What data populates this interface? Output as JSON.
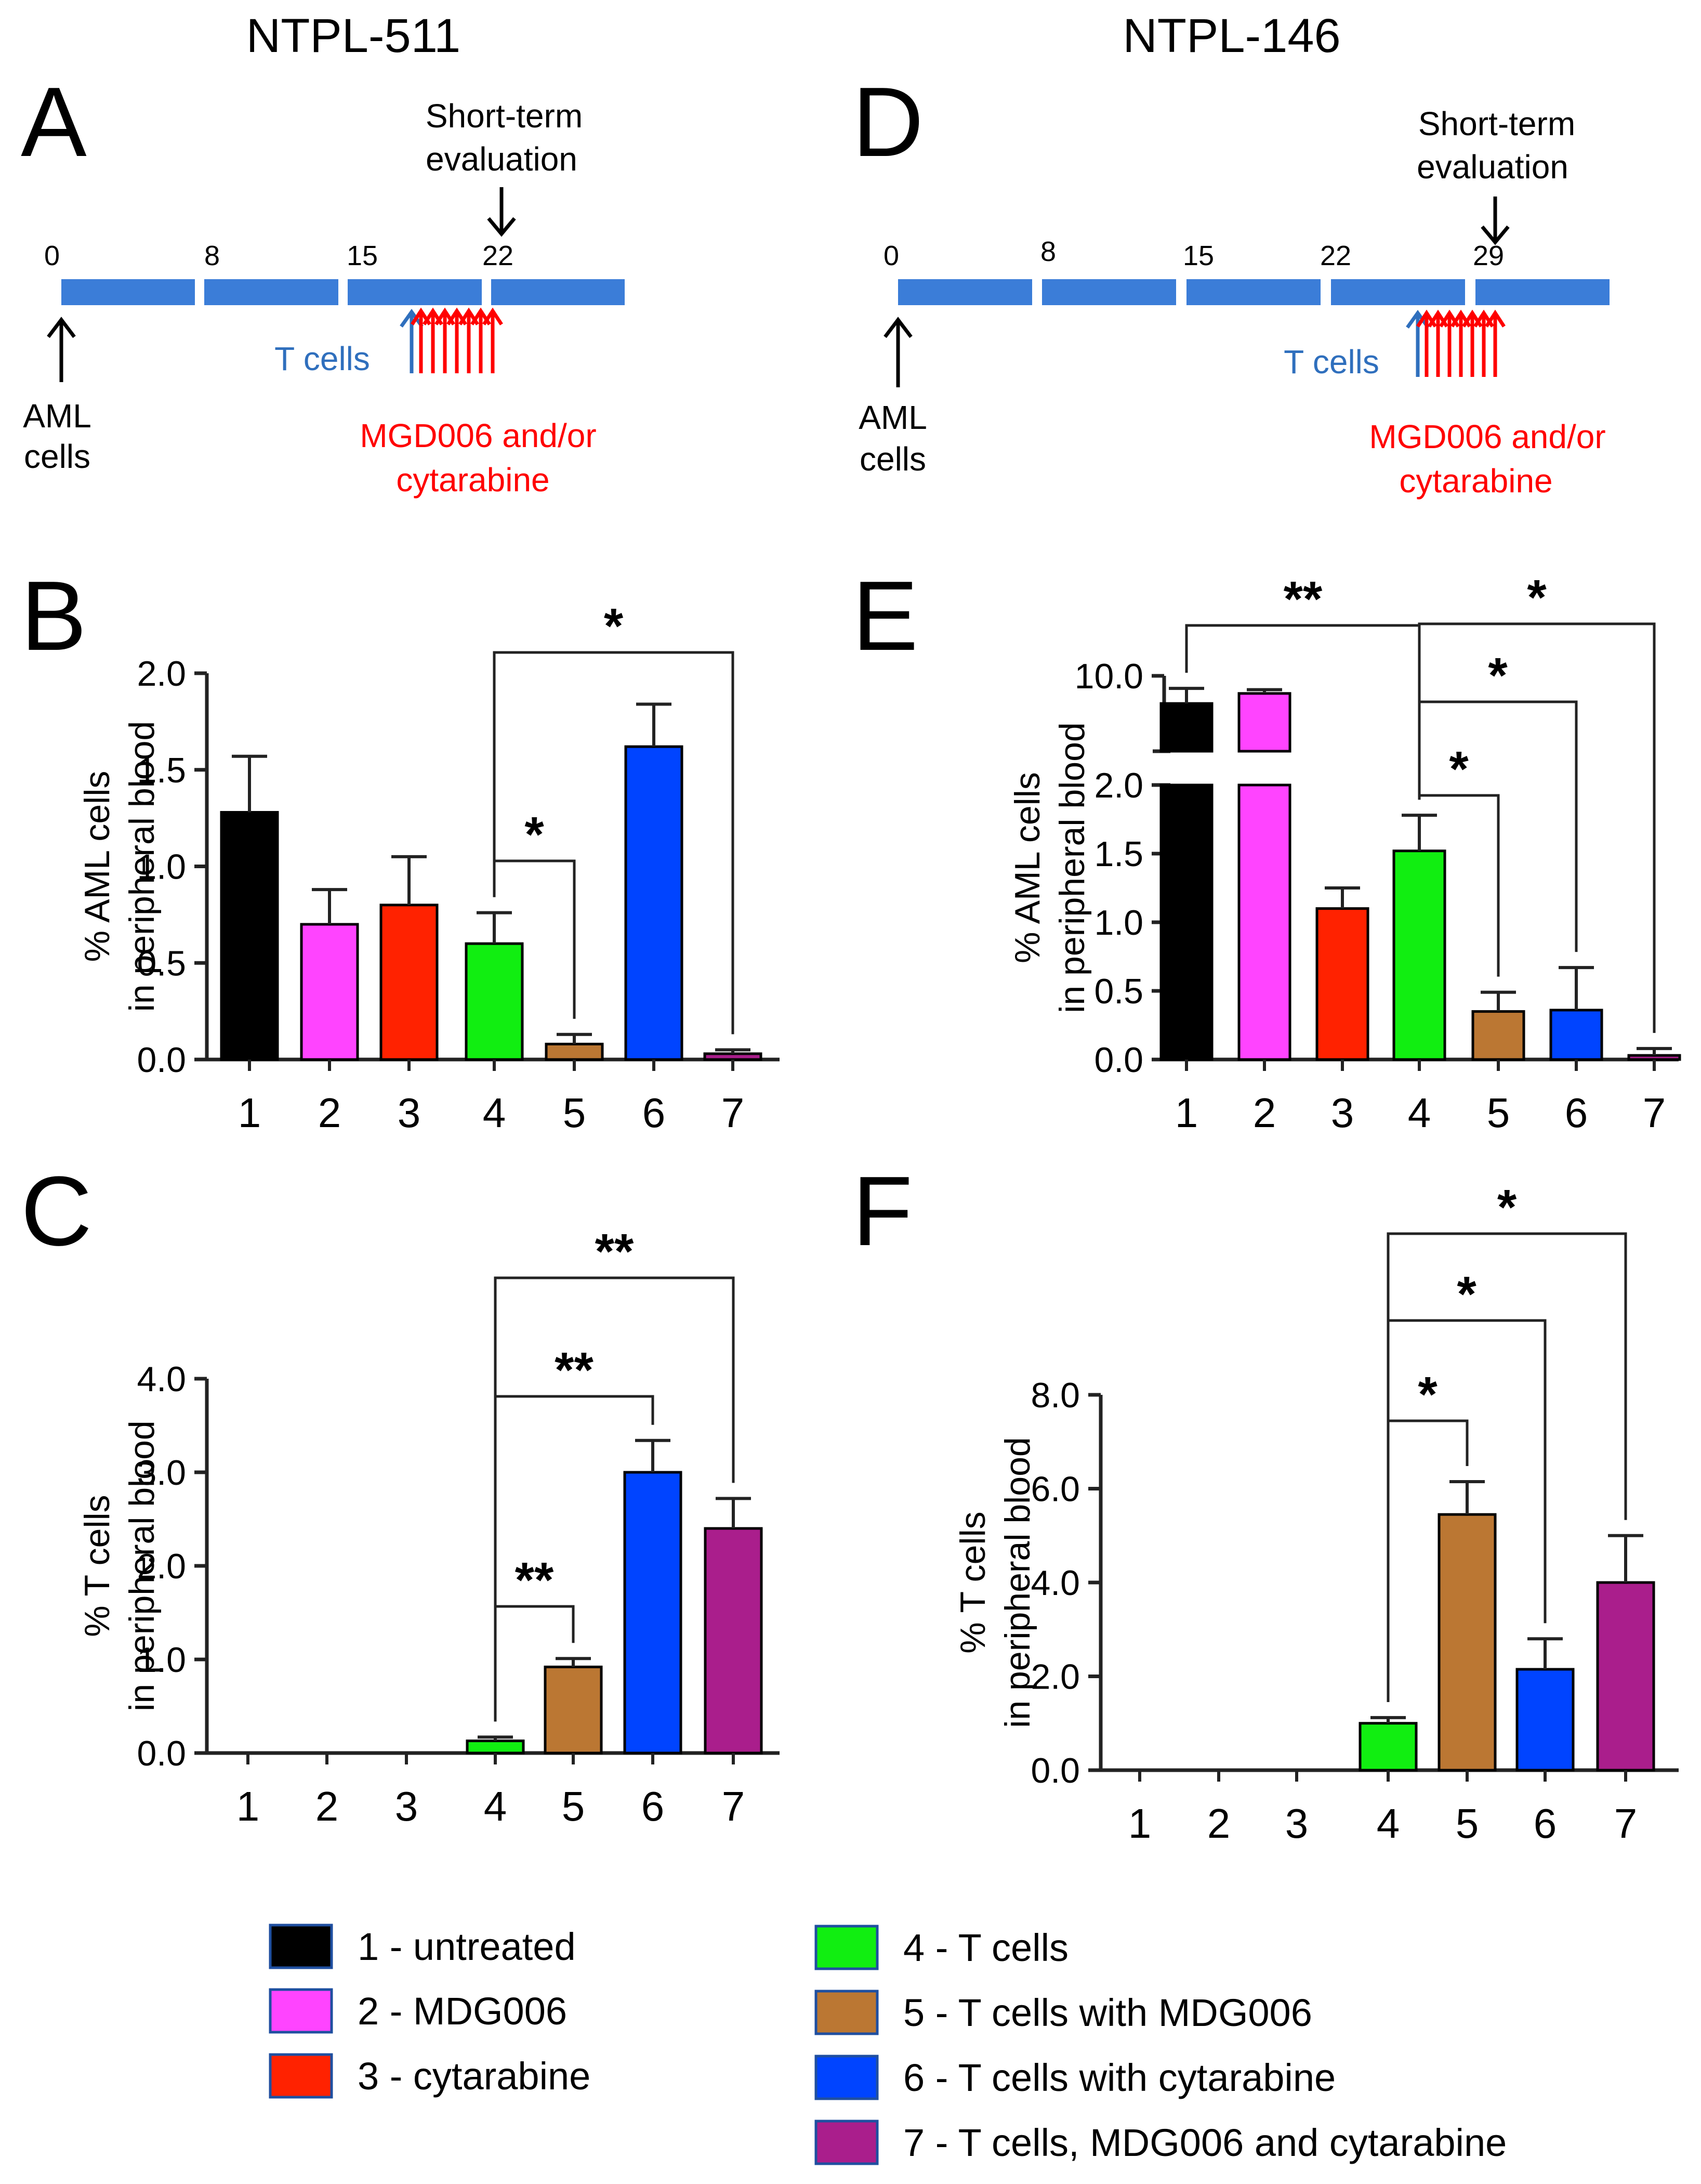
{
  "cohorts": {
    "left": "NTPL-511",
    "right": "NTPL-146"
  },
  "panel_letters": [
    "A",
    "B",
    "C",
    "D",
    "E",
    "F"
  ],
  "colors": {
    "timeline_bar": "#3b7dd8",
    "t_cells_arrow": "#2f6fbd",
    "treatment_arrow": "#ff0000",
    "annotation_black": "#000000",
    "groups": [
      "#000000",
      "#ff44ff",
      "#ff2200",
      "#11ee11",
      "#bb7733",
      "#0044ff",
      "#aa1e8c"
    ]
  },
  "timelines": [
    {
      "panel": "A",
      "day_labels": [
        "0",
        "8",
        "15",
        "22"
      ],
      "evaluation_label": [
        "Short-term",
        "evaluation"
      ],
      "aml_label": [
        "AML",
        "cells"
      ],
      "t_cells_label": "T cells",
      "treatment_label": [
        "MGD006 and/or",
        "cytarabine"
      ],
      "treatment_arrow_count": 7
    },
    {
      "panel": "D",
      "day_labels": [
        "0",
        "8",
        "15",
        "22",
        "29"
      ],
      "evaluation_label": [
        "Short-term",
        "evaluation"
      ],
      "aml_label": [
        "AML",
        "cells"
      ],
      "t_cells_label": "T cells",
      "treatment_label": [
        "MGD006 and/or",
        "cytarabine"
      ],
      "treatment_arrow_count": 7
    }
  ],
  "chart_data": [
    {
      "panel": "B",
      "type": "bar",
      "title": "",
      "xlabel": "",
      "ylabel": [
        "% AML cells",
        "in peripheral blood"
      ],
      "categories": [
        "1",
        "2",
        "3",
        "4",
        "5",
        "6",
        "7"
      ],
      "values": [
        1.28,
        0.7,
        0.8,
        0.6,
        0.08,
        1.62,
        0.03
      ],
      "errors": [
        0.29,
        0.18,
        0.25,
        0.16,
        0.05,
        0.22,
        0.02
      ],
      "ylim": [
        0,
        2.0
      ],
      "yticks": [
        "0.0",
        "0.5",
        "1.0",
        "1.5",
        "2.0"
      ],
      "significance": [
        {
          "from": "4",
          "to": "5",
          "label": "*"
        },
        {
          "from": "4",
          "to": "7",
          "label": "*"
        }
      ]
    },
    {
      "panel": "C",
      "type": "bar",
      "title": "",
      "xlabel": "",
      "ylabel": [
        "% T cells",
        "in peripheral blood"
      ],
      "categories": [
        "1",
        "2",
        "3",
        "4",
        "5",
        "6",
        "7"
      ],
      "values": [
        0,
        0,
        0,
        0.13,
        0.92,
        3.0,
        2.4
      ],
      "errors": [
        0,
        0,
        0,
        0.04,
        0.09,
        0.34,
        0.32
      ],
      "ylim": [
        0,
        4.0
      ],
      "yticks": [
        "0.0",
        "1.0",
        "2.0",
        "3.0",
        "4.0"
      ],
      "significance": [
        {
          "from": "4",
          "to": "5",
          "label": "**"
        },
        {
          "from": "4",
          "to": "6",
          "label": "**"
        },
        {
          "from": "4",
          "to": "7",
          "label": "**"
        }
      ]
    },
    {
      "panel": "E",
      "type": "bar",
      "title": "",
      "xlabel": "",
      "ylabel": [
        "% AML cells",
        "in peripheral blood"
      ],
      "categories": [
        "1",
        "2",
        "3",
        "4",
        "5",
        "6",
        "7"
      ],
      "values": [
        8.9,
        9.3,
        1.1,
        1.52,
        0.35,
        0.36,
        0.03
      ],
      "errors": [
        0.6,
        0.15,
        0.15,
        0.26,
        0.14,
        0.31,
        0.05
      ],
      "ylim": [
        0,
        10.0
      ],
      "axis_break": [
        2.0,
        7.0
      ],
      "yticks": [
        "0.0",
        "0.5",
        "1.0",
        "1.5",
        "2.0",
        "10.0"
      ],
      "significance": [
        {
          "from": "1",
          "to": "4",
          "label": "**"
        },
        {
          "from": "4",
          "to": "5",
          "label": "*"
        },
        {
          "from": "4",
          "to": "6",
          "label": "*"
        },
        {
          "from": "4",
          "to": "7",
          "label": "*"
        }
      ]
    },
    {
      "panel": "F",
      "type": "bar",
      "title": "",
      "xlabel": "",
      "ylabel": [
        "% T cells",
        "in peripheral blood"
      ],
      "categories": [
        "1",
        "2",
        "3",
        "4",
        "5",
        "6",
        "7"
      ],
      "values": [
        0,
        0,
        0,
        1.0,
        5.45,
        2.15,
        4.0
      ],
      "errors": [
        0,
        0,
        0,
        0.12,
        0.7,
        0.65,
        1.0
      ],
      "ylim": [
        0,
        8.0
      ],
      "yticks": [
        "0.0",
        "2.0",
        "4.0",
        "6.0",
        "8.0"
      ],
      "significance": [
        {
          "from": "4",
          "to": "5",
          "label": "*"
        },
        {
          "from": "4",
          "to": "6",
          "label": "*"
        },
        {
          "from": "4",
          "to": "7",
          "label": "*"
        }
      ]
    }
  ],
  "legend": [
    {
      "label": "1 - untreated"
    },
    {
      "label": "2 - MDG006"
    },
    {
      "label": "3 - cytarabine"
    },
    {
      "label": "4 - T cells"
    },
    {
      "label": "5 - T cells with MDG006"
    },
    {
      "label": "6 - T cells with cytarabine"
    },
    {
      "label": "7 - T cells, MDG006 and cytarabine"
    }
  ]
}
